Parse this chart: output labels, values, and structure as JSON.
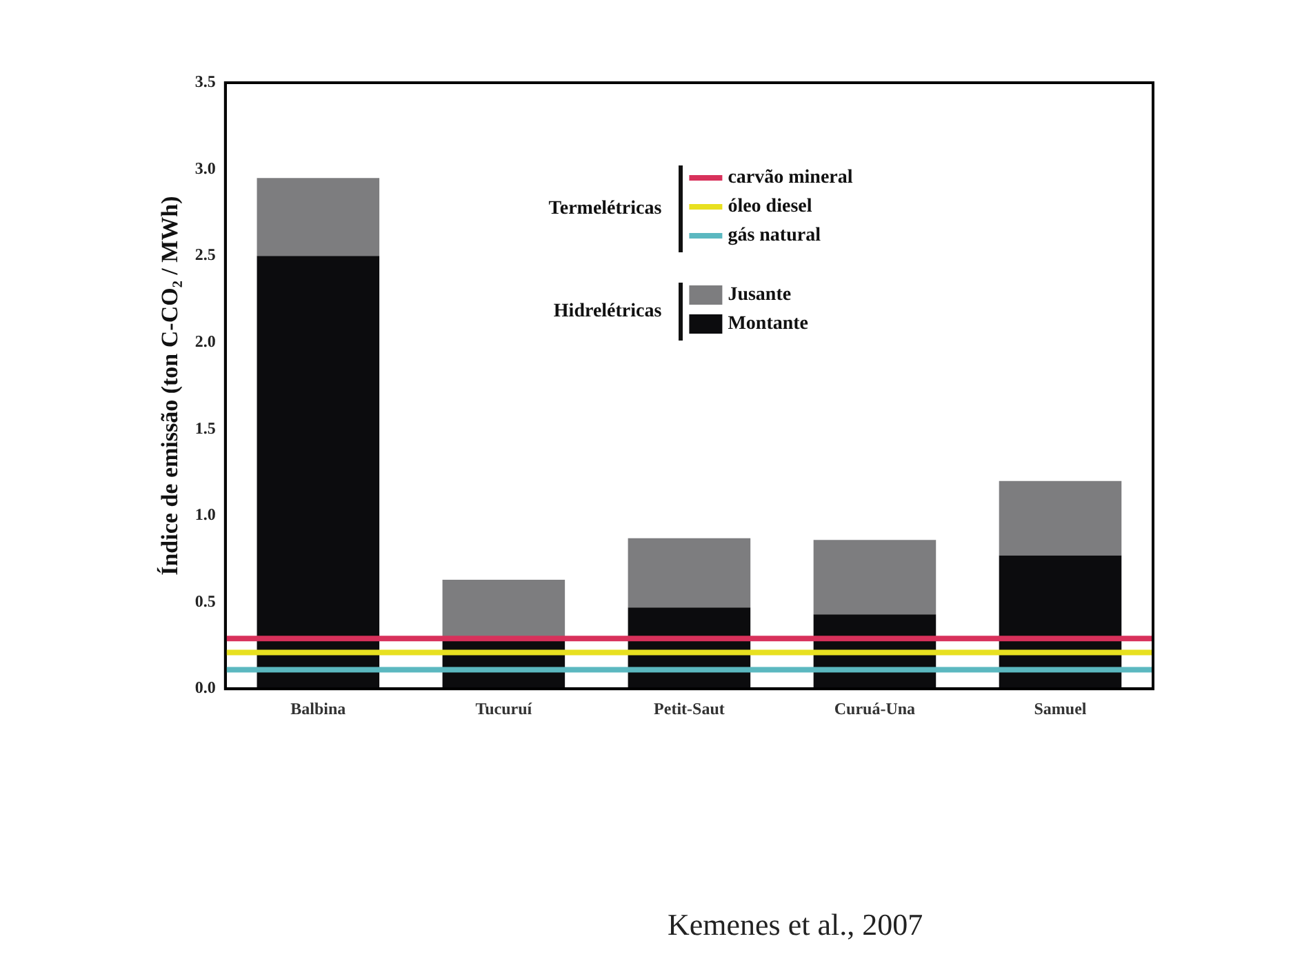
{
  "chart_data": {
    "type": "bar",
    "stacked": true,
    "categories": [
      "Balbina",
      "Tucuruí",
      "Petit-Saut",
      "Curuá-Una",
      "Samuel"
    ],
    "ylabel": "Índice de emissão (ton C-CO₂ / MWh)",
    "ylim": [
      0,
      3.5
    ],
    "yticks": [
      {
        "value": 0,
        "label": "0.0"
      },
      0.5,
      {
        "value": 1,
        "label": "1.0"
      },
      1.5,
      {
        "value": 2,
        "label": "2.0"
      },
      2.5,
      {
        "value": 3,
        "label": "3.0"
      },
      3.5
    ],
    "series": [
      {
        "name": "Montante",
        "color": "#0c0c0e",
        "values": [
          2.5,
          0.3,
          0.47,
          0.43,
          0.77
        ]
      },
      {
        "name": "Jusante",
        "color": "#7d7d7f",
        "values": [
          0.45,
          0.33,
          0.4,
          0.43,
          0.43
        ]
      }
    ],
    "ref_lines": [
      {
        "axis": "y",
        "value": 0.29,
        "label": "carvão mineral",
        "color": "#d8315b"
      },
      {
        "axis": "y",
        "value": 0.21,
        "label": "óleo diesel",
        "color": "#e8e020"
      },
      {
        "axis": "y",
        "value": 0.11,
        "label": "gás natural",
        "color": "#5bb8c0"
      }
    ],
    "annotations": [
      "Termelétricas",
      "Hidrelétricas",
      "Kemenes et al., 2007"
    ],
    "legend": "top right",
    "grid": false
  }
}
